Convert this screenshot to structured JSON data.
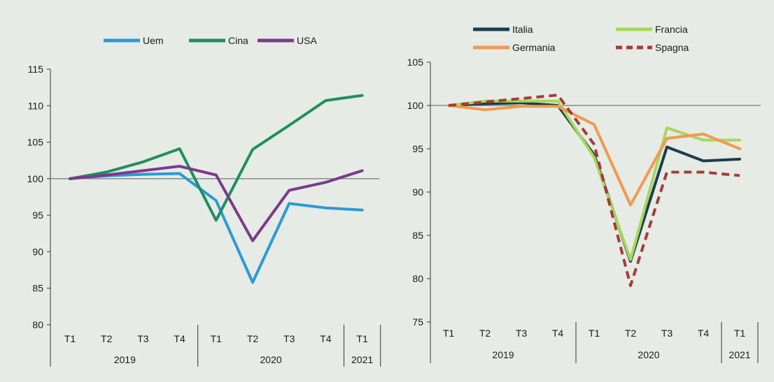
{
  "chart_data": [
    {
      "type": "line",
      "title": "",
      "xlabel": "",
      "ylabel": "",
      "categories": [
        "T1",
        "T2",
        "T3",
        "T4",
        "T1",
        "T2",
        "T3",
        "T4",
        "T1"
      ],
      "year_groups": [
        {
          "label": "2019",
          "count": 4
        },
        {
          "label": "2020",
          "count": 4
        },
        {
          "label": "2021",
          "count": 1
        }
      ],
      "ylim": [
        80,
        115
      ],
      "yticks": [
        80,
        85,
        90,
        95,
        100,
        105,
        110,
        115
      ],
      "reference_line": 100,
      "legend_position": "top",
      "series": [
        {
          "name": "Uem",
          "color": "#2b9ad6",
          "dash": false,
          "values": [
            100,
            100.4,
            100.6,
            100.7,
            97.0,
            85.8,
            96.6,
            96.0,
            95.7
          ]
        },
        {
          "name": "Cina",
          "color": "#1f8f5f",
          "dash": false,
          "values": [
            100,
            100.9,
            102.3,
            104.1,
            94.3,
            104.0,
            107.3,
            110.7,
            111.4
          ]
        },
        {
          "name": "USA",
          "color": "#7b3a8c",
          "dash": false,
          "values": [
            100,
            100.5,
            101.1,
            101.7,
            100.5,
            91.5,
            98.4,
            99.5,
            101.1
          ]
        }
      ]
    },
    {
      "type": "line",
      "title": "",
      "xlabel": "",
      "ylabel": "",
      "categories": [
        "T1",
        "T2",
        "T3",
        "T4",
        "T1",
        "T2",
        "T3",
        "T4",
        "T1"
      ],
      "year_groups": [
        {
          "label": "2019",
          "count": 4
        },
        {
          "label": "2020",
          "count": 4
        },
        {
          "label": "2021",
          "count": 1
        }
      ],
      "ylim": [
        75,
        105
      ],
      "yticks": [
        75,
        80,
        85,
        90,
        95,
        100,
        105
      ],
      "reference_line": 100,
      "legend_position": "top",
      "series": [
        {
          "name": "Italia",
          "color": "#1c3d4f",
          "dash": false,
          "values": [
            100,
            100.2,
            100.3,
            100.0,
            94.3,
            82.0,
            95.2,
            93.6,
            93.8
          ]
        },
        {
          "name": "Francia",
          "color": "#a6d85a",
          "dash": false,
          "values": [
            100,
            100.5,
            100.5,
            100.5,
            94.0,
            82.2,
            97.4,
            96.0,
            96.0
          ]
        },
        {
          "name": "Germania",
          "color": "#f29a4e",
          "dash": false,
          "values": [
            100,
            99.5,
            99.9,
            99.9,
            97.8,
            88.5,
            96.2,
            96.7,
            95.0
          ]
        },
        {
          "name": "Spagna",
          "color": "#a83a35",
          "dash": true,
          "values": [
            100,
            100.4,
            100.8,
            101.2,
            95.5,
            79.2,
            92.3,
            92.3,
            91.9
          ]
        }
      ]
    }
  ]
}
